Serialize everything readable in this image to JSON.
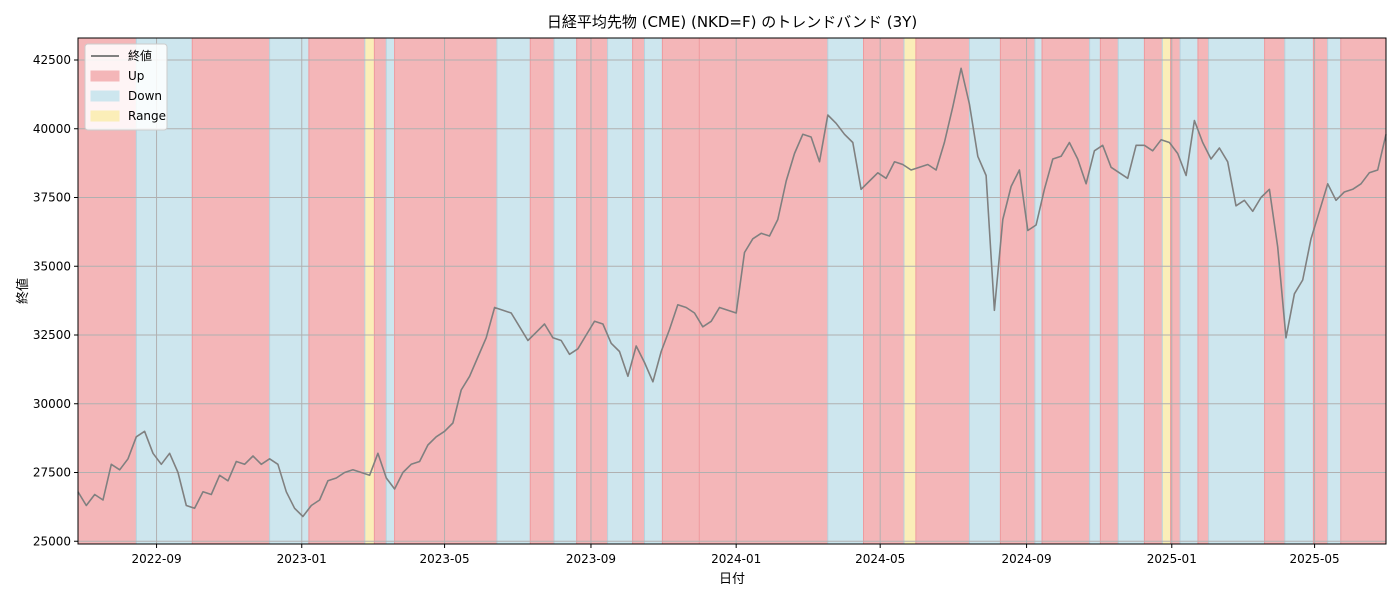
{
  "chart_data": {
    "type": "line",
    "title": "日経平均先物 (CME) (NKD=F) のトレンドバンド (3Y)",
    "xlabel": "日付",
    "ylabel": "終値",
    "xlim": [
      "2022-06-27",
      "2025-06-30"
    ],
    "ylim": [
      24900,
      43300
    ],
    "grid": true,
    "legend": {
      "position": "top-left",
      "entries": [
        {
          "label": "終値",
          "kind": "line",
          "color": "#808080"
        },
        {
          "label": "Up",
          "kind": "patch",
          "color": "#f4b6b8"
        },
        {
          "label": "Down",
          "kind": "patch",
          "color": "#cde6ee"
        },
        {
          "label": "Range",
          "kind": "patch",
          "color": "#fbeeb8"
        }
      ]
    },
    "x_ticks": [
      {
        "date": "2022-09-01",
        "label": "2022-09"
      },
      {
        "date": "2023-01-01",
        "label": "2023-01"
      },
      {
        "date": "2023-05-01",
        "label": "2023-05"
      },
      {
        "date": "2023-09-01",
        "label": "2023-09"
      },
      {
        "date": "2024-01-01",
        "label": "2024-01"
      },
      {
        "date": "2024-05-01",
        "label": "2024-05"
      },
      {
        "date": "2024-09-01",
        "label": "2024-09"
      },
      {
        "date": "2025-01-01",
        "label": "2025-01"
      },
      {
        "date": "2025-05-01",
        "label": "2025-05"
      }
    ],
    "y_ticks": [
      {
        "value": 25000,
        "label": "25000"
      },
      {
        "value": 27500,
        "label": "27500"
      },
      {
        "value": 30000,
        "label": "30000"
      },
      {
        "value": 32500,
        "label": "32500"
      },
      {
        "value": 35000,
        "label": "35000"
      },
      {
        "value": 37500,
        "label": "37500"
      },
      {
        "value": 40000,
        "label": "40000"
      },
      {
        "value": 42500,
        "label": "42500"
      }
    ],
    "bands": [
      {
        "start": "2022-06-27",
        "end": "2022-08-15",
        "trend": "up"
      },
      {
        "start": "2022-08-15",
        "end": "2022-10-01",
        "trend": "down"
      },
      {
        "start": "2022-10-01",
        "end": "2022-12-05",
        "trend": "up"
      },
      {
        "start": "2022-12-05",
        "end": "2023-01-07",
        "trend": "down"
      },
      {
        "start": "2023-01-07",
        "end": "2023-02-23",
        "trend": "up"
      },
      {
        "start": "2023-02-23",
        "end": "2023-03-03",
        "trend": "range"
      },
      {
        "start": "2023-03-03",
        "end": "2023-03-13",
        "trend": "up"
      },
      {
        "start": "2023-03-13",
        "end": "2023-03-20",
        "trend": "down"
      },
      {
        "start": "2023-03-20",
        "end": "2023-06-14",
        "trend": "up"
      },
      {
        "start": "2023-06-14",
        "end": "2023-07-12",
        "trend": "down"
      },
      {
        "start": "2023-07-12",
        "end": "2023-08-01",
        "trend": "up"
      },
      {
        "start": "2023-08-01",
        "end": "2023-08-20",
        "trend": "down"
      },
      {
        "start": "2023-08-20",
        "end": "2023-09-15",
        "trend": "up"
      },
      {
        "start": "2023-09-15",
        "end": "2023-10-06",
        "trend": "down"
      },
      {
        "start": "2023-10-06",
        "end": "2023-10-16",
        "trend": "up"
      },
      {
        "start": "2023-10-16",
        "end": "2023-10-31",
        "trend": "down"
      },
      {
        "start": "2023-10-31",
        "end": "2023-12-01",
        "trend": "up"
      },
      {
        "start": "2023-12-01",
        "end": "2024-03-18",
        "trend": "up"
      },
      {
        "start": "2024-03-18",
        "end": "2024-04-17",
        "trend": "down"
      },
      {
        "start": "2024-04-17",
        "end": "2024-05-21",
        "trend": "up"
      },
      {
        "start": "2024-05-21",
        "end": "2024-05-31",
        "trend": "range"
      },
      {
        "start": "2024-05-31",
        "end": "2024-07-15",
        "trend": "up"
      },
      {
        "start": "2024-07-15",
        "end": "2024-08-10",
        "trend": "down"
      },
      {
        "start": "2024-08-10",
        "end": "2024-09-08",
        "trend": "up"
      },
      {
        "start": "2024-09-08",
        "end": "2024-09-14",
        "trend": "down"
      },
      {
        "start": "2024-09-14",
        "end": "2024-10-24",
        "trend": "up"
      },
      {
        "start": "2024-10-24",
        "end": "2024-11-02",
        "trend": "down"
      },
      {
        "start": "2024-11-02",
        "end": "2024-11-17",
        "trend": "up"
      },
      {
        "start": "2024-11-17",
        "end": "2024-12-09",
        "trend": "down"
      },
      {
        "start": "2024-12-09",
        "end": "2024-12-24",
        "trend": "up"
      },
      {
        "start": "2024-12-24",
        "end": "2024-12-31",
        "trend": "range"
      },
      {
        "start": "2024-12-31",
        "end": "2025-01-08",
        "trend": "up"
      },
      {
        "start": "2025-01-08",
        "end": "2025-01-23",
        "trend": "down"
      },
      {
        "start": "2025-01-23",
        "end": "2025-02-01",
        "trend": "up"
      },
      {
        "start": "2025-02-01",
        "end": "2025-03-20",
        "trend": "down"
      },
      {
        "start": "2025-03-20",
        "end": "2025-04-06",
        "trend": "up"
      },
      {
        "start": "2025-04-06",
        "end": "2025-04-30",
        "trend": "down"
      },
      {
        "start": "2025-04-30",
        "end": "2025-05-12",
        "trend": "up"
      },
      {
        "start": "2025-05-12",
        "end": "2025-05-23",
        "trend": "down"
      },
      {
        "start": "2025-05-23",
        "end": "2025-06-30",
        "trend": "up"
      }
    ],
    "band_colors": {
      "up": "#f4b6b8",
      "down": "#cde6ee",
      "range": "#fbeeb8"
    },
    "series": [
      {
        "name": "終値",
        "color": "#808080",
        "points": [
          [
            "2022-06-27",
            26800
          ],
          [
            "2022-07-04",
            26300
          ],
          [
            "2022-07-11",
            26700
          ],
          [
            "2022-07-18",
            26500
          ],
          [
            "2022-07-25",
            27800
          ],
          [
            "2022-08-01",
            27600
          ],
          [
            "2022-08-08",
            28000
          ],
          [
            "2022-08-15",
            28800
          ],
          [
            "2022-08-22",
            29000
          ],
          [
            "2022-08-29",
            28200
          ],
          [
            "2022-09-05",
            27800
          ],
          [
            "2022-09-12",
            28200
          ],
          [
            "2022-09-19",
            27500
          ],
          [
            "2022-09-26",
            26300
          ],
          [
            "2022-10-03",
            26200
          ],
          [
            "2022-10-10",
            26800
          ],
          [
            "2022-10-17",
            26700
          ],
          [
            "2022-10-24",
            27400
          ],
          [
            "2022-10-31",
            27200
          ],
          [
            "2022-11-07",
            27900
          ],
          [
            "2022-11-14",
            27800
          ],
          [
            "2022-11-21",
            28100
          ],
          [
            "2022-11-28",
            27800
          ],
          [
            "2022-12-05",
            28000
          ],
          [
            "2022-12-12",
            27800
          ],
          [
            "2022-12-19",
            26800
          ],
          [
            "2022-12-26",
            26200
          ],
          [
            "2023-01-02",
            25900
          ],
          [
            "2023-01-09",
            26300
          ],
          [
            "2023-01-16",
            26500
          ],
          [
            "2023-01-23",
            27200
          ],
          [
            "2023-01-30",
            27300
          ],
          [
            "2023-02-06",
            27500
          ],
          [
            "2023-02-13",
            27600
          ],
          [
            "2023-02-20",
            27500
          ],
          [
            "2023-02-27",
            27400
          ],
          [
            "2023-03-06",
            28200
          ],
          [
            "2023-03-13",
            27300
          ],
          [
            "2023-03-20",
            26900
          ],
          [
            "2023-03-27",
            27500
          ],
          [
            "2023-04-03",
            27800
          ],
          [
            "2023-04-10",
            27900
          ],
          [
            "2023-04-17",
            28500
          ],
          [
            "2023-04-24",
            28800
          ],
          [
            "2023-05-01",
            29000
          ],
          [
            "2023-05-08",
            29300
          ],
          [
            "2023-05-15",
            30500
          ],
          [
            "2023-05-22",
            31000
          ],
          [
            "2023-05-29",
            31700
          ],
          [
            "2023-06-05",
            32400
          ],
          [
            "2023-06-12",
            33500
          ],
          [
            "2023-06-19",
            33400
          ],
          [
            "2023-06-26",
            33300
          ],
          [
            "2023-07-03",
            32800
          ],
          [
            "2023-07-10",
            32300
          ],
          [
            "2023-07-17",
            32600
          ],
          [
            "2023-07-24",
            32900
          ],
          [
            "2023-07-31",
            32400
          ],
          [
            "2023-08-07",
            32300
          ],
          [
            "2023-08-14",
            31800
          ],
          [
            "2023-08-21",
            32000
          ],
          [
            "2023-08-28",
            32500
          ],
          [
            "2023-09-04",
            33000
          ],
          [
            "2023-09-11",
            32900
          ],
          [
            "2023-09-18",
            32200
          ],
          [
            "2023-09-25",
            31900
          ],
          [
            "2023-10-02",
            31000
          ],
          [
            "2023-10-09",
            32100
          ],
          [
            "2023-10-16",
            31500
          ],
          [
            "2023-10-23",
            30800
          ],
          [
            "2023-10-30",
            31900
          ],
          [
            "2023-11-06",
            32700
          ],
          [
            "2023-11-13",
            33600
          ],
          [
            "2023-11-20",
            33500
          ],
          [
            "2023-11-27",
            33300
          ],
          [
            "2023-12-04",
            32800
          ],
          [
            "2023-12-11",
            33000
          ],
          [
            "2023-12-18",
            33500
          ],
          [
            "2023-12-25",
            33400
          ],
          [
            "2024-01-01",
            33300
          ],
          [
            "2024-01-08",
            35500
          ],
          [
            "2024-01-15",
            36000
          ],
          [
            "2024-01-22",
            36200
          ],
          [
            "2024-01-29",
            36100
          ],
          [
            "2024-02-05",
            36700
          ],
          [
            "2024-02-12",
            38100
          ],
          [
            "2024-02-19",
            39100
          ],
          [
            "2024-02-26",
            39800
          ],
          [
            "2024-03-04",
            39700
          ],
          [
            "2024-03-11",
            38800
          ],
          [
            "2024-03-18",
            40500
          ],
          [
            "2024-03-25",
            40200
          ],
          [
            "2024-04-01",
            39800
          ],
          [
            "2024-04-08",
            39500
          ],
          [
            "2024-04-15",
            37800
          ],
          [
            "2024-04-22",
            38100
          ],
          [
            "2024-04-29",
            38400
          ],
          [
            "2024-05-06",
            38200
          ],
          [
            "2024-05-13",
            38800
          ],
          [
            "2024-05-20",
            38700
          ],
          [
            "2024-05-27",
            38500
          ],
          [
            "2024-06-03",
            38600
          ],
          [
            "2024-06-10",
            38700
          ],
          [
            "2024-06-17",
            38500
          ],
          [
            "2024-06-24",
            39500
          ],
          [
            "2024-07-01",
            40800
          ],
          [
            "2024-07-08",
            42200
          ],
          [
            "2024-07-15",
            40900
          ],
          [
            "2024-07-22",
            39000
          ],
          [
            "2024-07-29",
            38300
          ],
          [
            "2024-08-05",
            33400
          ],
          [
            "2024-08-12",
            36700
          ],
          [
            "2024-08-19",
            37900
          ],
          [
            "2024-08-26",
            38500
          ],
          [
            "2024-09-02",
            36300
          ],
          [
            "2024-09-09",
            36500
          ],
          [
            "2024-09-16",
            37800
          ],
          [
            "2024-09-23",
            38900
          ],
          [
            "2024-09-30",
            39000
          ],
          [
            "2024-10-07",
            39500
          ],
          [
            "2024-10-14",
            38900
          ],
          [
            "2024-10-21",
            38000
          ],
          [
            "2024-10-28",
            39200
          ],
          [
            "2024-11-04",
            39400
          ],
          [
            "2024-11-11",
            38600
          ],
          [
            "2024-11-18",
            38400
          ],
          [
            "2024-11-25",
            38200
          ],
          [
            "2024-12-02",
            39400
          ],
          [
            "2024-12-09",
            39400
          ],
          [
            "2024-12-16",
            39200
          ],
          [
            "2024-12-23",
            39600
          ],
          [
            "2024-12-30",
            39500
          ],
          [
            "2025-01-06",
            39100
          ],
          [
            "2025-01-13",
            38300
          ],
          [
            "2025-01-20",
            40300
          ],
          [
            "2025-01-27",
            39500
          ],
          [
            "2025-02-03",
            38900
          ],
          [
            "2025-02-10",
            39300
          ],
          [
            "2025-02-17",
            38800
          ],
          [
            "2025-02-24",
            37200
          ],
          [
            "2025-03-03",
            37400
          ],
          [
            "2025-03-10",
            37000
          ],
          [
            "2025-03-17",
            37500
          ],
          [
            "2025-03-24",
            37800
          ],
          [
            "2025-03-31",
            35700
          ],
          [
            "2025-04-07",
            32400
          ],
          [
            "2025-04-14",
            34000
          ],
          [
            "2025-04-21",
            34500
          ],
          [
            "2025-04-28",
            36000
          ],
          [
            "2025-05-05",
            37000
          ],
          [
            "2025-05-12",
            38000
          ],
          [
            "2025-05-19",
            37400
          ],
          [
            "2025-05-26",
            37700
          ],
          [
            "2025-06-02",
            37800
          ],
          [
            "2025-06-09",
            38000
          ],
          [
            "2025-06-16",
            38400
          ],
          [
            "2025-06-23",
            38500
          ],
          [
            "2025-06-30",
            39800
          ]
        ]
      }
    ]
  }
}
